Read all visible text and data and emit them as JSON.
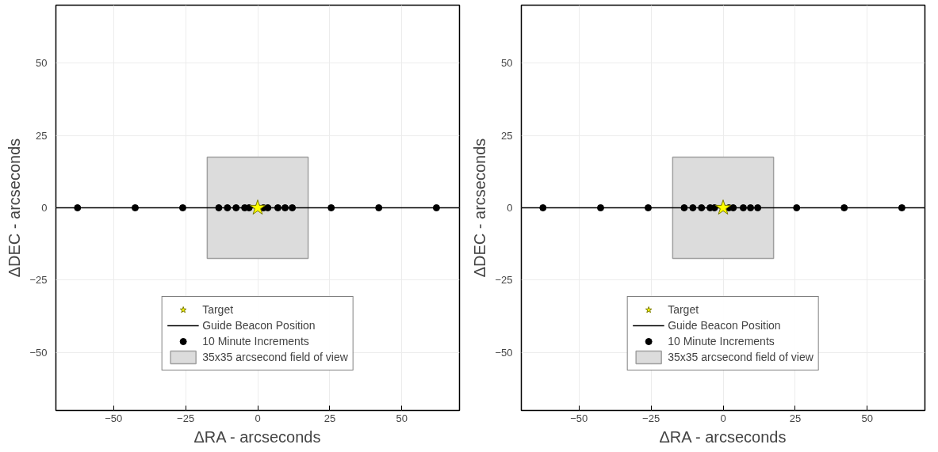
{
  "chart_data": [
    {
      "type": "scatter",
      "xlabel": "ΔRA - arcseconds",
      "ylabel": "ΔDEC - arcseconds",
      "xlim": [
        -70,
        70
      ],
      "ylim": [
        -70,
        70
      ],
      "xticks": [
        -50,
        -25,
        0,
        25,
        50
      ],
      "yticks": [
        -50,
        -25,
        0,
        25,
        50
      ],
      "grid": true,
      "legend": "bottom",
      "series": [
        {
          "name": "Target",
          "marker": "star",
          "color": "#ffff00",
          "x": [
            0
          ],
          "values": [
            0
          ]
        },
        {
          "name": "Guide Beacon Position",
          "type": "line",
          "color": "#000000",
          "x": [
            -70,
            70
          ],
          "values": [
            0,
            0
          ]
        },
        {
          "name": "10 Minute Increments",
          "marker": "circle",
          "color": "#000000",
          "x": [
            -62.5,
            -42.5,
            -26,
            -13.5,
            -10.5,
            -7.5,
            -4.5,
            -3,
            0,
            2,
            3.5,
            7,
            9.5,
            12,
            25.5,
            42,
            62
          ],
          "values": [
            0,
            0,
            0,
            0,
            0,
            0,
            0,
            0,
            0,
            0,
            0,
            0,
            0,
            0,
            0,
            0,
            0
          ]
        },
        {
          "name": "35x35 arcsecond field of view",
          "type": "bar",
          "color": "#dcdcdc",
          "x": [
            0
          ],
          "values": [
            35
          ],
          "base": [
            -17.5
          ]
        }
      ]
    },
    {
      "type": "scatter",
      "xlabel": "ΔRA - arcseconds",
      "ylabel": "ΔDEC - arcseconds",
      "xlim": [
        -70,
        70
      ],
      "ylim": [
        -70,
        70
      ],
      "xticks": [
        -50,
        -25,
        0,
        25,
        50
      ],
      "yticks": [
        -50,
        -25,
        0,
        25,
        50
      ],
      "grid": true,
      "legend": "bottom",
      "series": [
        {
          "name": "Target",
          "marker": "star",
          "color": "#ffff00",
          "x": [
            0
          ],
          "values": [
            0
          ]
        },
        {
          "name": "Guide Beacon Position",
          "type": "line",
          "color": "#000000",
          "x": [
            -70,
            70
          ],
          "values": [
            0,
            0
          ]
        },
        {
          "name": "10 Minute Increments",
          "marker": "circle",
          "color": "#000000",
          "x": [
            -62.5,
            -42.5,
            -26,
            -13.5,
            -10.5,
            -7.5,
            -4.5,
            -3,
            0,
            2,
            3.5,
            7,
            9.5,
            12,
            25.5,
            42,
            62
          ],
          "values": [
            0,
            0,
            0,
            0,
            0,
            0,
            0,
            0,
            0,
            0,
            0,
            0,
            0,
            0,
            0,
            0,
            0
          ]
        },
        {
          "name": "35x35 arcsecond field of view",
          "type": "bar",
          "color": "#dcdcdc",
          "x": [
            0
          ],
          "values": [
            35
          ],
          "base": [
            -17.5
          ]
        }
      ]
    }
  ]
}
